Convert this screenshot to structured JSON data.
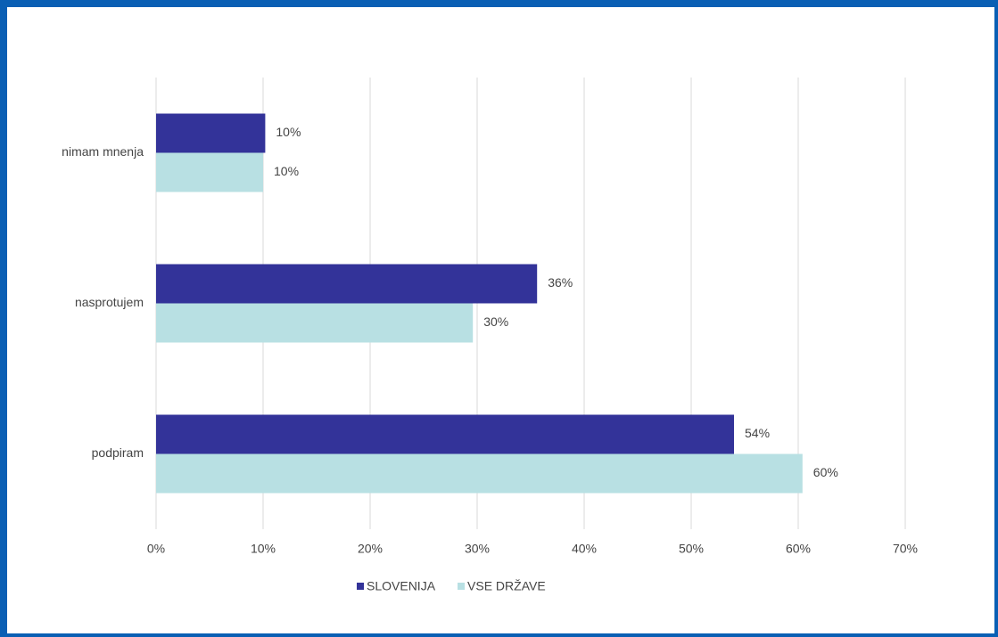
{
  "chart_data": {
    "type": "bar",
    "orientation": "horizontal",
    "categories": [
      "nimam mnenja",
      "nasprotujem",
      "podpiram"
    ],
    "series": [
      {
        "name": "SLOVENIJA",
        "color": "#333399",
        "values": [
          10.2,
          35.6,
          54
        ],
        "value_labels": [
          "10%",
          "36%",
          "54%"
        ]
      },
      {
        "name": "VSE DRŽAVE",
        "color": "#b8e0e3",
        "values": [
          10,
          29.6,
          60.4
        ],
        "value_labels": [
          "10%",
          "30%",
          "60%"
        ]
      }
    ],
    "xlim": [
      0,
      70
    ],
    "xticks": [
      {
        "value": 0,
        "label": "0%"
      },
      {
        "value": 10,
        "label": "10%"
      },
      {
        "value": 20,
        "label": "20%"
      },
      {
        "value": 30,
        "label": "30%"
      },
      {
        "value": 40,
        "label": "40%"
      },
      {
        "value": 50,
        "label": "50%"
      },
      {
        "value": 60,
        "label": "60%"
      },
      {
        "value": 70,
        "label": "70%"
      }
    ],
    "grid": true,
    "legend": "bottom"
  }
}
